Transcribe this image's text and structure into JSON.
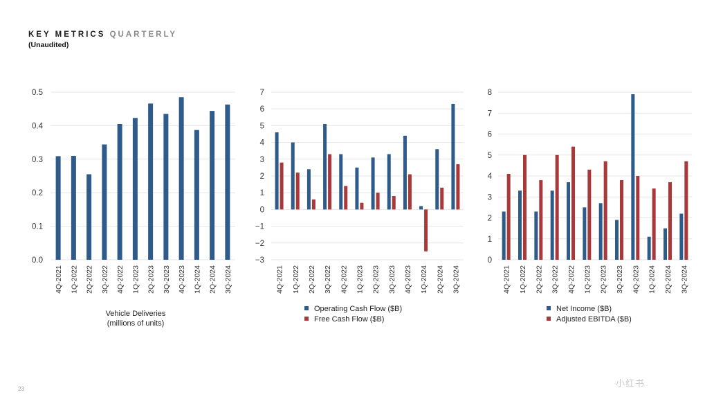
{
  "header": {
    "title_primary": "KEY METRICS",
    "title_secondary": "QUARTERLY",
    "subtitle": "(Unaudited)"
  },
  "page_number": "23",
  "watermark": "小红书",
  "colors": {
    "blue": "#2e5b8a",
    "red": "#a8393b",
    "grid": "#e6e6e6",
    "axis_text": "#333333"
  },
  "chart_data": [
    {
      "type": "bar",
      "categories": [
        "4Q-2021",
        "1Q-2022",
        "2Q-2022",
        "3Q-2022",
        "4Q-2022",
        "1Q-2023",
        "2Q-2023",
        "3Q-2023",
        "4Q-2023",
        "1Q-2024",
        "2Q-2024",
        "3Q-2024"
      ],
      "series": [
        {
          "name": "",
          "color": "#2e5b8a",
          "values": [
            0.309,
            0.31,
            0.255,
            0.344,
            0.405,
            0.423,
            0.466,
            0.435,
            0.485,
            0.387,
            0.444,
            0.463
          ]
        }
      ],
      "ylim": [
        0,
        0.5
      ],
      "yticks": [
        "0.0",
        "0.1",
        "0.2",
        "0.3",
        "0.4",
        "0.5"
      ],
      "ytick_values": [
        0,
        0.1,
        0.2,
        0.3,
        0.4,
        0.5
      ],
      "caption": [
        "Vehicle Deliveries",
        "(millions of units)"
      ],
      "grid": true
    },
    {
      "type": "bar",
      "categories": [
        "4Q-2021",
        "1Q-2022",
        "2Q-2022",
        "3Q-2022",
        "4Q-2022",
        "1Q-2023",
        "2Q-2023",
        "3Q-2023",
        "4Q-2023",
        "1Q-2024",
        "2Q-2024",
        "3Q-2024"
      ],
      "series": [
        {
          "name": "Operating Cash Flow ($B)",
          "color": "#2e5b8a",
          "values": [
            4.6,
            4.0,
            2.4,
            5.1,
            3.3,
            2.5,
            3.1,
            3.3,
            4.4,
            0.2,
            3.6,
            6.3
          ]
        },
        {
          "name": "Free Cash Flow ($B)",
          "color": "#a8393b",
          "values": [
            2.8,
            2.2,
            0.6,
            3.3,
            1.4,
            0.4,
            1.0,
            0.8,
            2.1,
            -2.5,
            1.3,
            2.7
          ]
        }
      ],
      "ylim": [
        -3,
        7
      ],
      "yticks": [
        "−3",
        "−2",
        "−1",
        "0",
        "1",
        "2",
        "3",
        "4",
        "5",
        "6",
        "7"
      ],
      "ytick_values": [
        -3,
        -2,
        -1,
        0,
        1,
        2,
        3,
        4,
        5,
        6,
        7
      ],
      "legend_position": "bottom",
      "grid": true
    },
    {
      "type": "bar",
      "categories": [
        "4Q-2021",
        "1Q-2022",
        "2Q-2022",
        "3Q-2022",
        "4Q-2022",
        "1Q-2023",
        "2Q-2023",
        "3Q-2023",
        "4Q-2023",
        "1Q-2024",
        "2Q-2024",
        "3Q-2024"
      ],
      "series": [
        {
          "name": "Net Income ($B)",
          "color": "#2e5b8a",
          "values": [
            2.3,
            3.3,
            2.3,
            3.3,
            3.7,
            2.5,
            2.7,
            1.9,
            7.9,
            1.1,
            1.5,
            2.2
          ]
        },
        {
          "name": "Adjusted EBITDA ($B)",
          "color": "#a8393b",
          "values": [
            4.1,
            5.0,
            3.8,
            5.0,
            5.4,
            4.3,
            4.7,
            3.8,
            4.0,
            3.4,
            3.7,
            4.7
          ]
        }
      ],
      "ylim": [
        0,
        8
      ],
      "yticks": [
        "0",
        "1",
        "2",
        "3",
        "4",
        "5",
        "6",
        "7",
        "8"
      ],
      "ytick_values": [
        0,
        1,
        2,
        3,
        4,
        5,
        6,
        7,
        8
      ],
      "legend_position": "bottom",
      "grid": true
    }
  ]
}
